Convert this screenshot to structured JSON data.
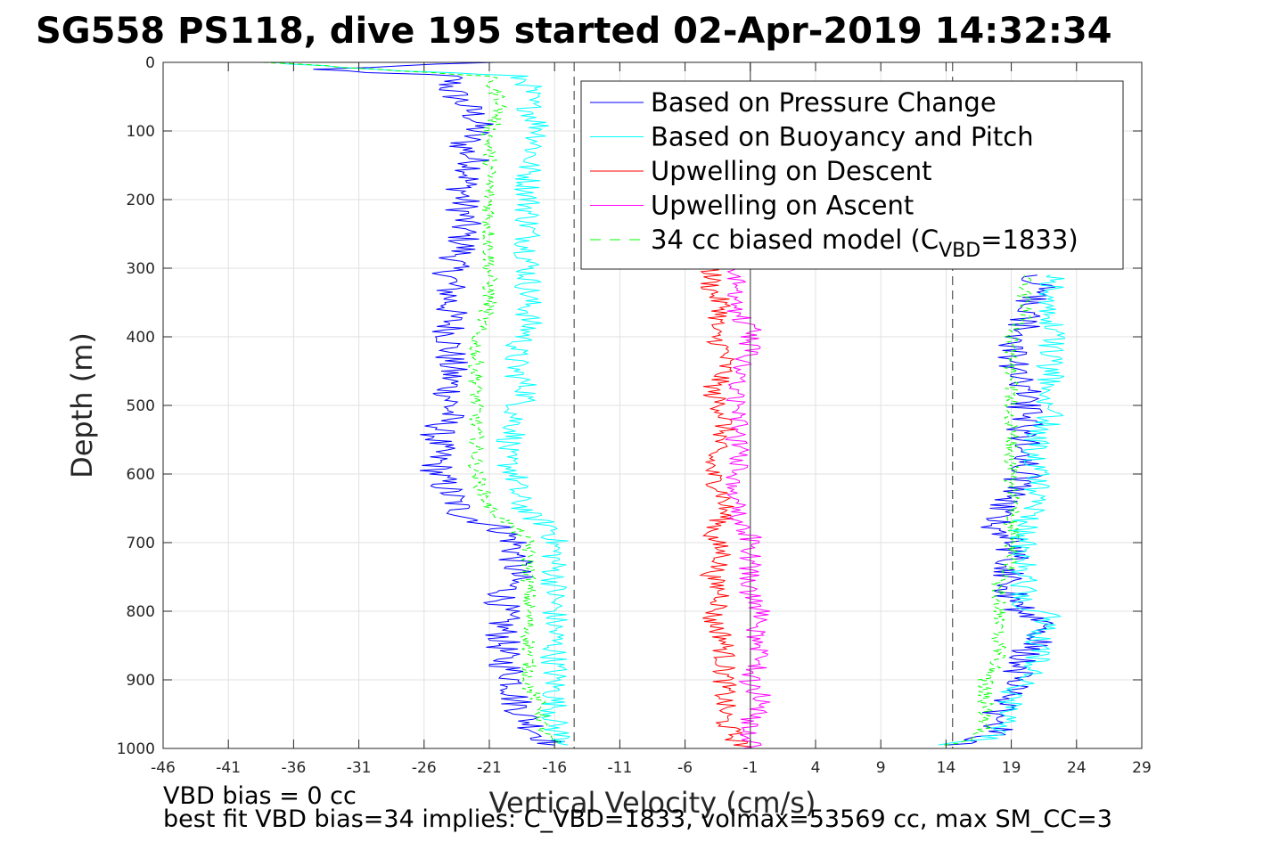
{
  "chart_data": {
    "type": "line",
    "title": "SG558 PS118, dive 195 started 02-Apr-2019 14:32:34",
    "xlabel": "Vertical Velocity (cm/s)",
    "ylabel": "Depth (m)",
    "xlim": [
      -46,
      29
    ],
    "ylim": [
      0,
      1000
    ],
    "y_reversed": true,
    "xticks": [
      -46,
      -41,
      -36,
      -31,
      -26,
      -21,
      -16,
      -11,
      -6,
      -1,
      4,
      9,
      14,
      19,
      24,
      29
    ],
    "yticks": [
      0,
      100,
      200,
      300,
      400,
      500,
      600,
      700,
      800,
      900,
      1000
    ],
    "grid": true,
    "legend_position": "top-right",
    "reference_lines": [
      {
        "x": -14.5,
        "style": "dashed",
        "color": "#555555"
      },
      {
        "x": -1,
        "style": "solid",
        "color": "#555555"
      },
      {
        "x": 14.5,
        "style": "dashed",
        "color": "#555555"
      }
    ],
    "series": [
      {
        "name": "Based on Pressure Change",
        "color": "#0000ff",
        "style": "solid",
        "descent": {
          "depth": [
            0,
            10,
            20,
            30,
            40,
            60,
            80,
            100,
            120,
            150,
            180,
            210,
            240,
            270,
            300,
            330,
            360,
            390,
            420,
            450,
            480,
            510,
            540,
            570,
            600,
            630,
            660,
            680,
            700,
            720,
            750,
            780,
            810,
            840,
            870,
            900,
            930,
            960,
            980,
            995
          ],
          "value": [
            -21,
            -35,
            -24,
            -24,
            -24,
            -23,
            -22,
            -22,
            -23,
            -22,
            -23,
            -23,
            -23,
            -23,
            -24,
            -24,
            -24,
            -24,
            -24,
            -24,
            -24,
            -24,
            -25,
            -25,
            -25,
            -24,
            -23,
            -20,
            -19,
            -19,
            -19,
            -20,
            -20,
            -20,
            -20,
            -19,
            -19,
            -18,
            -17,
            -16
          ]
        },
        "ascent": {
          "depth": [
            995,
            985,
            970,
            950,
            920,
            900,
            870,
            840,
            810,
            790,
            760,
            730,
            700,
            680,
            660,
            630,
            600,
            570,
            540,
            510,
            480,
            450,
            420,
            390,
            360,
            330,
            310
          ],
          "value": [
            14,
            17,
            18,
            18,
            19,
            19,
            20,
            21,
            21,
            19,
            19,
            19,
            19,
            18,
            18,
            19,
            20,
            20,
            20,
            20,
            20,
            19,
            19,
            20,
            20,
            21,
            21
          ]
        }
      },
      {
        "name": "Based on Buoyancy and Pitch",
        "color": "#00ffff",
        "style": "solid",
        "descent": {
          "depth": [
            0,
            10,
            20,
            30,
            60,
            100,
            150,
            200,
            250,
            300,
            330,
            360,
            390,
            420,
            450,
            480,
            510,
            540,
            570,
            600,
            630,
            660,
            680,
            700,
            730,
            760,
            790,
            820,
            850,
            880,
            910,
            940,
            970,
            995
          ],
          "value": [
            -38,
            -30,
            -19,
            -18,
            -18,
            -17,
            -18,
            -18,
            -18,
            -18,
            -18,
            -18,
            -18,
            -19,
            -19,
            -18,
            -19,
            -19,
            -20,
            -19,
            -19,
            -18,
            -16,
            -16,
            -16,
            -16,
            -16,
            -16,
            -16,
            -16,
            -16,
            -16,
            -16,
            -15
          ]
        },
        "ascent": {
          "depth": [
            995,
            985,
            970,
            950,
            920,
            900,
            870,
            840,
            810,
            790,
            760,
            730,
            700,
            670,
            640,
            610,
            580,
            550,
            520,
            490,
            460,
            430,
            400,
            370,
            340,
            310
          ],
          "value": [
            14,
            17,
            18,
            19,
            19,
            20,
            21,
            21,
            22,
            20,
            20,
            20,
            20,
            20,
            21,
            21,
            21,
            21,
            22,
            22,
            22,
            22,
            22,
            22,
            22,
            22
          ]
        }
      },
      {
        "name": "Upwelling on Descent",
        "color": "#ff0000",
        "style": "solid",
        "descent": {
          "depth": [
            300,
            330,
            360,
            390,
            420,
            450,
            480,
            510,
            540,
            570,
            600,
            630,
            660,
            690,
            720,
            750,
            780,
            810,
            840,
            870,
            900,
            930,
            960,
            990,
            1000
          ],
          "value": [
            -4,
            -4,
            -3,
            -4,
            -3,
            -3,
            -4,
            -3,
            -3,
            -4,
            -4,
            -3,
            -3,
            -4,
            -3,
            -4,
            -3,
            -4,
            -3,
            -3,
            -3,
            -3,
            -3,
            -2,
            -1
          ]
        }
      },
      {
        "name": "Upwelling on Ascent",
        "color": "#ff00ff",
        "style": "solid",
        "ascent": {
          "depth": [
            1000,
            980,
            960,
            930,
            900,
            870,
            840,
            810,
            780,
            750,
            720,
            690,
            660,
            630,
            600,
            570,
            540,
            510,
            480,
            450,
            420,
            390,
            360,
            330,
            300
          ],
          "value": [
            -1,
            -1,
            -1,
            0,
            -1,
            0,
            -1,
            0,
            -1,
            -1,
            -1,
            -1,
            -2,
            -2,
            -2,
            -2,
            -2,
            -2,
            -2,
            -2,
            -1,
            -1,
            -2,
            -2,
            -2
          ]
        }
      },
      {
        "name": "34 cc biased model (C",
        "name_subscript": "VBD",
        "name_suffix": "=1833)",
        "color": "#00ff00",
        "style": "dashed",
        "descent": {
          "depth": [
            0,
            10,
            20,
            30,
            60,
            100,
            150,
            200,
            250,
            300,
            350,
            400,
            450,
            500,
            550,
            600,
            650,
            680,
            700,
            730,
            760,
            790,
            820,
            850,
            880,
            910,
            940,
            970,
            995
          ],
          "value": [
            -38,
            -30,
            -21,
            -21,
            -20,
            -21,
            -21,
            -21,
            -21,
            -21,
            -21,
            -22,
            -22,
            -22,
            -22,
            -22,
            -21,
            -19,
            -18,
            -18,
            -18,
            -18,
            -18,
            -18,
            -18,
            -18,
            -17,
            -17,
            -16
          ]
        },
        "ascent": {
          "depth": [
            995,
            985,
            970,
            950,
            920,
            900,
            870,
            840,
            810,
            790,
            760,
            730,
            700,
            670,
            640,
            610,
            580,
            550,
            520,
            490,
            460,
            430,
            400,
            370,
            340,
            310
          ],
          "value": [
            14,
            16,
            17,
            17,
            17,
            17,
            18,
            18,
            18,
            18,
            18,
            19,
            19,
            19,
            19,
            19,
            19,
            19,
            19,
            19,
            19,
            19,
            19,
            20,
            20,
            20
          ]
        }
      }
    ],
    "annotations": [
      "VBD bias = 0 cc",
      "best fit VBD bias=34 implies: C_VBD=1833, volmax=53569 cc, max SM_CC=3"
    ]
  }
}
